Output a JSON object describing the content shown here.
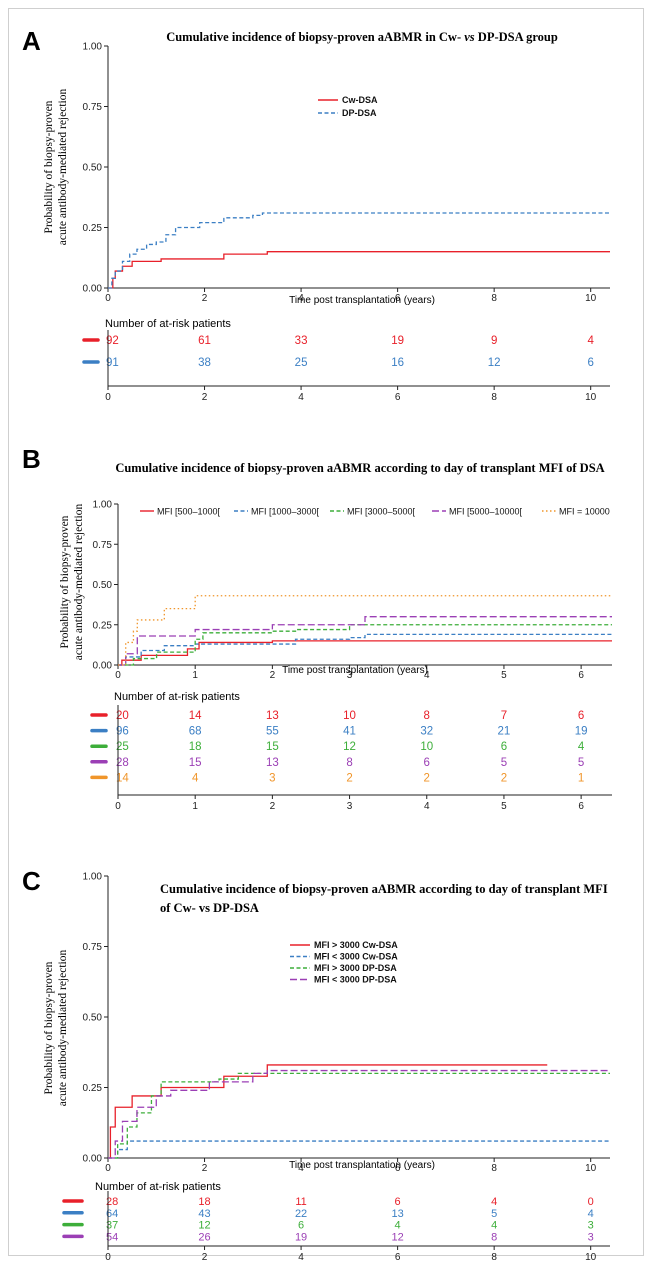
{
  "chart_data": [
    {
      "panel_letter": "A",
      "type": "line",
      "title": "Cumulative incidence of biopsy-proven aABMR in Cw- vs DP-DSA group",
      "xlabel": "Time post transplantation (years)",
      "ylabel_line1": "Probability of biopsy-proven",
      "ylabel_line2": "acute antibody-mediated rejection",
      "xlim": [
        0,
        10.4
      ],
      "ylim": [
        0,
        1
      ],
      "xticks": [
        0,
        2,
        4,
        6,
        8,
        10
      ],
      "yticks": [
        "0.00",
        "0.25",
        "0.50",
        "0.75",
        "1.00"
      ],
      "legend_position": "center",
      "risk_title": "Number of at-risk patients",
      "risk_times": [
        0,
        2,
        4,
        6,
        8,
        10
      ],
      "series": [
        {
          "name": "Cw-DSA",
          "color": "#e8202a",
          "dash": "solid",
          "steps": [
            [
              0,
              0
            ],
            [
              0.1,
              0.04
            ],
            [
              0.15,
              0.07
            ],
            [
              0.3,
              0.09
            ],
            [
              0.5,
              0.11
            ],
            [
              1.0,
              0.11
            ],
            [
              1.1,
              0.12
            ],
            [
              2.0,
              0.12
            ],
            [
              2.4,
              0.14
            ],
            [
              3.2,
              0.14
            ],
            [
              3.3,
              0.15
            ],
            [
              10.4,
              0.15
            ]
          ],
          "at_risk": [
            92,
            61,
            33,
            19,
            9,
            4
          ]
        },
        {
          "name": "DP-DSA",
          "color": "#3b7fc4",
          "dash": "dashed",
          "steps": [
            [
              0,
              0
            ],
            [
              0.08,
              0.04
            ],
            [
              0.15,
              0.07
            ],
            [
              0.3,
              0.11
            ],
            [
              0.45,
              0.14
            ],
            [
              0.6,
              0.16
            ],
            [
              0.8,
              0.18
            ],
            [
              1.0,
              0.19
            ],
            [
              1.2,
              0.22
            ],
            [
              1.4,
              0.25
            ],
            [
              1.9,
              0.27
            ],
            [
              2.4,
              0.29
            ],
            [
              3.0,
              0.3
            ],
            [
              3.2,
              0.31
            ],
            [
              10.4,
              0.31
            ]
          ],
          "at_risk": [
            91,
            38,
            25,
            16,
            12,
            6
          ]
        }
      ]
    },
    {
      "panel_letter": "B",
      "type": "line",
      "title": "Cumulative incidence of  biopsy-proven aABMR according to day of transplant MFI of DSA",
      "xlabel": "Time post transplantation (years)",
      "ylabel_line1": "Probability of biopsy-proven",
      "ylabel_line2": "acute antibody-mediated rejection",
      "xlim": [
        0,
        6.4
      ],
      "ylim": [
        0,
        1
      ],
      "xticks": [
        0,
        1,
        2,
        3,
        4,
        5,
        6
      ],
      "yticks": [
        "0.00",
        "0.25",
        "0.50",
        "0.75",
        "1.00"
      ],
      "legend_position": "top",
      "risk_title": "Number of at-risk patients",
      "risk_times": [
        0,
        1,
        2,
        3,
        4,
        5,
        6
      ],
      "series": [
        {
          "name": "MFI [500–1000[",
          "color": "#e8202a",
          "dash": "solid",
          "steps": [
            [
              0,
              0
            ],
            [
              0.05,
              0.03
            ],
            [
              0.3,
              0.06
            ],
            [
              0.9,
              0.1
            ],
            [
              1.05,
              0.14
            ],
            [
              2.0,
              0.15
            ],
            [
              6.4,
              0.15
            ]
          ],
          "at_risk": [
            20,
            14,
            13,
            10,
            8,
            7,
            6
          ]
        },
        {
          "name": "MFI [1000–3000[",
          "color": "#3b7fc4",
          "dash": "dashed",
          "steps": [
            [
              0,
              0
            ],
            [
              0.1,
              0.05
            ],
            [
              0.3,
              0.09
            ],
            [
              0.6,
              0.12
            ],
            [
              1.0,
              0.13
            ],
            [
              2.3,
              0.16
            ],
            [
              3.0,
              0.17
            ],
            [
              3.2,
              0.19
            ],
            [
              6.4,
              0.19
            ]
          ],
          "at_risk": [
            96,
            68,
            55,
            41,
            32,
            21,
            19
          ]
        },
        {
          "name": "MFI [3000–5000[",
          "color": "#3dae3a",
          "dash": "dashed",
          "steps": [
            [
              0,
              0
            ],
            [
              0.2,
              0.04
            ],
            [
              0.5,
              0.08
            ],
            [
              1.0,
              0.16
            ],
            [
              1.1,
              0.2
            ],
            [
              2.0,
              0.21
            ],
            [
              2.3,
              0.22
            ],
            [
              3.0,
              0.25
            ],
            [
              6.4,
              0.25
            ]
          ],
          "at_risk": [
            25,
            18,
            15,
            12,
            10,
            6,
            4
          ]
        },
        {
          "name": "MFI [5000–10000[",
          "color": "#9b3fb5",
          "dash": "longdash",
          "steps": [
            [
              0,
              0
            ],
            [
              0.1,
              0.07
            ],
            [
              0.25,
              0.18
            ],
            [
              0.7,
              0.18
            ],
            [
              1.0,
              0.22
            ],
            [
              1.8,
              0.22
            ],
            [
              2.0,
              0.25
            ],
            [
              3.2,
              0.3
            ],
            [
              6.4,
              0.3
            ]
          ],
          "at_risk": [
            28,
            15,
            13,
            8,
            6,
            5,
            5
          ]
        },
        {
          "name": "MFI = 10000",
          "color": "#f0952a",
          "dash": "dotted",
          "steps": [
            [
              0,
              0
            ],
            [
              0.1,
              0.14
            ],
            [
              0.2,
              0.21
            ],
            [
              0.25,
              0.28
            ],
            [
              0.6,
              0.35
            ],
            [
              1.0,
              0.43
            ],
            [
              6.4,
              0.43
            ]
          ],
          "at_risk": [
            14,
            4,
            3,
            2,
            2,
            2,
            1
          ]
        }
      ]
    },
    {
      "panel_letter": "C",
      "type": "line",
      "title_line1": "Cumulative incidence of  biopsy-proven aABMR according to day of transplant MFI",
      "title_line2": "of Cw- vs DP-DSA",
      "xlabel": "Time post transplantation (years)",
      "ylabel_line1": "Probability of biopsy-proven",
      "ylabel_line2": "acute antibody-mediated rejection",
      "xlim": [
        0,
        10.4
      ],
      "ylim": [
        0,
        1
      ],
      "xticks": [
        0,
        2,
        4,
        6,
        8,
        10
      ],
      "yticks": [
        "0.00",
        "0.25",
        "0.50",
        "0.75",
        "1.00"
      ],
      "legend_position": "center",
      "risk_title": "Number of at-risk patients",
      "risk_times": [
        0,
        2,
        4,
        6,
        8,
        10
      ],
      "series": [
        {
          "name": "MFI > 3000 Cw-DSA",
          "color": "#e8202a",
          "dash": "solid",
          "steps": [
            [
              0,
              0
            ],
            [
              0.05,
              0.11
            ],
            [
              0.15,
              0.18
            ],
            [
              0.4,
              0.18
            ],
            [
              0.5,
              0.22
            ],
            [
              1.0,
              0.22
            ],
            [
              1.1,
              0.25
            ],
            [
              2.0,
              0.25
            ],
            [
              2.4,
              0.29
            ],
            [
              3.2,
              0.29
            ],
            [
              3.3,
              0.33
            ],
            [
              9.1,
              0.33
            ]
          ],
          "at_risk": [
            28,
            18,
            11,
            6,
            4,
            0
          ]
        },
        {
          "name": "MFI < 3000 Cw-DSA",
          "color": "#3b7fc4",
          "dash": "dashed",
          "steps": [
            [
              0,
              0
            ],
            [
              0.2,
              0.03
            ],
            [
              0.4,
              0.06
            ],
            [
              10.4,
              0.06
            ]
          ],
          "at_risk": [
            64,
            43,
            22,
            13,
            5,
            4
          ]
        },
        {
          "name": "MFI > 3000 DP-DSA",
          "color": "#3dae3a",
          "dash": "dashed",
          "steps": [
            [
              0,
              0
            ],
            [
              0.2,
              0.05
            ],
            [
              0.4,
              0.11
            ],
            [
              0.6,
              0.16
            ],
            [
              0.9,
              0.22
            ],
            [
              1.1,
              0.27
            ],
            [
              2.0,
              0.27
            ],
            [
              2.3,
              0.28
            ],
            [
              2.7,
              0.3
            ],
            [
              10.4,
              0.3
            ]
          ],
          "at_risk": [
            37,
            12,
            6,
            4,
            4,
            3
          ]
        },
        {
          "name": "MFI < 3000 DP-DSA",
          "color": "#9b3fb5",
          "dash": "longdash",
          "steps": [
            [
              0,
              0
            ],
            [
              0.15,
              0.06
            ],
            [
              0.3,
              0.13
            ],
            [
              0.6,
              0.18
            ],
            [
              1.0,
              0.22
            ],
            [
              1.3,
              0.24
            ],
            [
              2.1,
              0.27
            ],
            [
              3.0,
              0.3
            ],
            [
              3.3,
              0.31
            ],
            [
              10.4,
              0.31
            ]
          ],
          "at_risk": [
            54,
            26,
            19,
            12,
            8,
            3
          ]
        }
      ]
    }
  ]
}
